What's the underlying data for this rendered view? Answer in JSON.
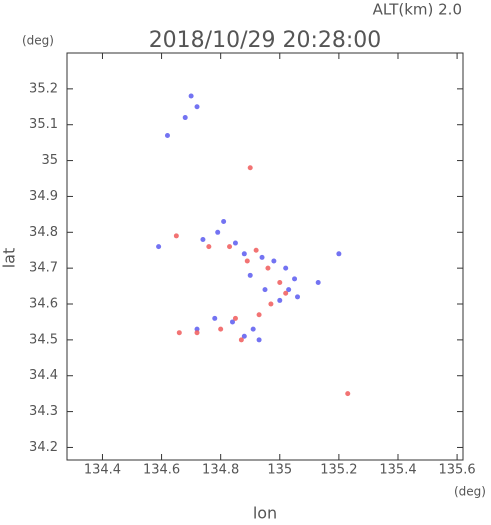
{
  "chart_data": {
    "type": "scatter",
    "title": "2018/10/29 20:28:00",
    "annotation": "ALT(km) 2.0",
    "x_unit": "(deg)",
    "y_unit": "(deg)",
    "x_label": "lon",
    "y_label": "lat",
    "xlim": [
      134.28,
      135.62
    ],
    "xticks": [
      134.4,
      134.6,
      134.8,
      135.0,
      135.2,
      135.4,
      135.6
    ],
    "ylim": [
      34.165,
      35.3
    ],
    "yticks": [
      34.2,
      34.3,
      34.4,
      34.5,
      34.6,
      34.7,
      34.8,
      34.9,
      35.0,
      35.1,
      35.2
    ],
    "series": [
      {
        "color": "#5a5af0",
        "x": [
          134.7,
          134.68,
          134.72,
          134.62,
          134.81,
          134.79,
          134.74,
          134.85,
          134.88,
          134.94,
          134.98,
          135.02,
          135.05,
          135.03,
          135.0,
          134.95,
          134.9,
          135.2,
          135.13,
          134.91,
          134.88,
          134.84,
          134.78,
          134.72,
          134.59,
          134.93,
          135.06
        ],
        "values": [
          35.18,
          35.12,
          35.15,
          35.07,
          34.83,
          34.8,
          34.78,
          34.77,
          34.74,
          34.73,
          34.72,
          34.7,
          34.67,
          34.64,
          34.61,
          34.64,
          34.68,
          34.74,
          34.66,
          34.53,
          34.51,
          34.55,
          34.56,
          34.53,
          34.76,
          34.5,
          34.62
        ]
      },
      {
        "color": "#f05a5a",
        "x": [
          134.9,
          134.65,
          134.66,
          134.72,
          134.83,
          134.92,
          134.96,
          135.0,
          134.97,
          134.87,
          134.8,
          134.85,
          134.93,
          135.23,
          134.76,
          135.02,
          134.89
        ],
        "values": [
          34.98,
          34.79,
          34.52,
          34.52,
          34.76,
          34.75,
          34.7,
          34.66,
          34.6,
          34.5,
          34.53,
          34.56,
          34.57,
          34.35,
          34.76,
          34.63,
          34.72
        ]
      }
    ]
  }
}
